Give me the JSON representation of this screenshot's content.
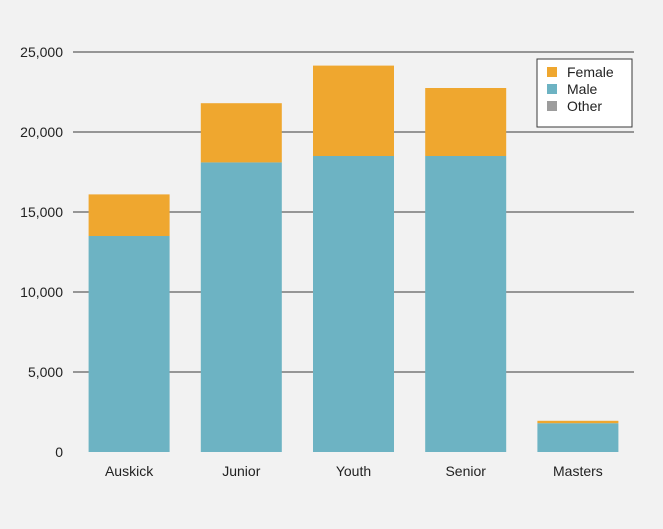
{
  "chart_data": {
    "type": "bar",
    "stacked": true,
    "categories": [
      "Auskick",
      "Junior",
      "Youth",
      "Senior",
      "Masters"
    ],
    "series": [
      {
        "name": "Male",
        "color": "#6db3c3",
        "values": [
          13500,
          18100,
          18500,
          18500,
          1800
        ]
      },
      {
        "name": "Female",
        "color": "#efa72f",
        "values": [
          2600,
          3700,
          5650,
          4250,
          150
        ]
      },
      {
        "name": "Other",
        "color": "#9c9c9c",
        "values": [
          0,
          0,
          0,
          0,
          0
        ]
      }
    ],
    "legend_order": [
      "Female",
      "Male",
      "Other"
    ],
    "legend_position": "top-right",
    "ylim": [
      0,
      25000
    ],
    "yticks": [
      0,
      5000,
      10000,
      15000,
      20000,
      25000
    ],
    "ytick_labels": [
      "0",
      "5,000",
      "10,000",
      "15,000",
      "20,000",
      "25,000"
    ],
    "grid": true,
    "title": "",
    "xlabel": "",
    "ylabel": ""
  }
}
